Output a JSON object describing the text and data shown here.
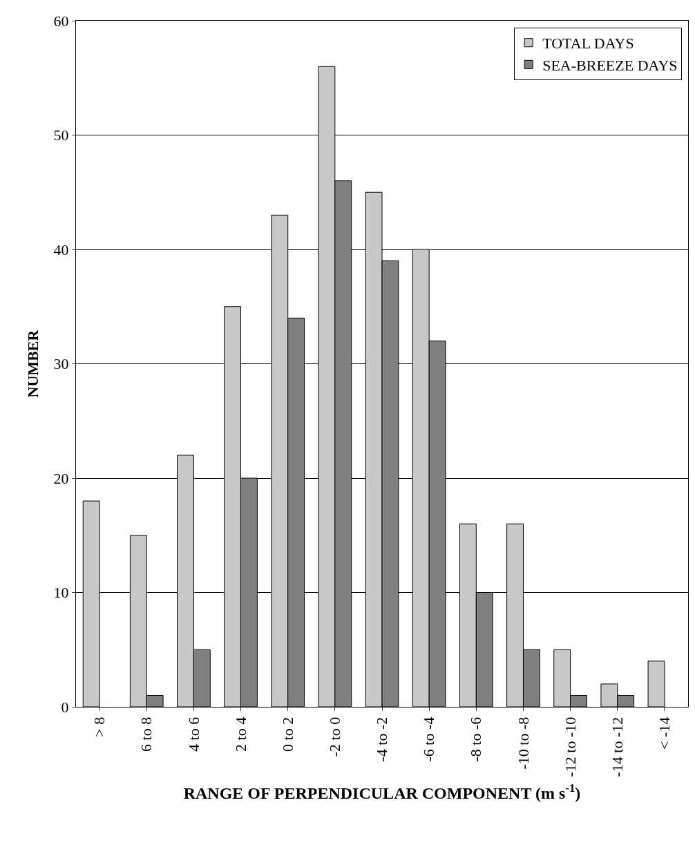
{
  "chart_data": {
    "type": "bar",
    "xlabel": "RANGE OF PERPENDICULAR COMPONENT (m s$^{-1}$)",
    "ylabel": "NUMBER",
    "categories": [
      "> 8",
      "6 to 8",
      "4 to 6",
      "2 to 4",
      "0 to 2",
      "-2 to 0",
      "-4 to -2",
      "-6 to -4",
      "-8 to -6",
      "-10 to -8",
      "-12 to -10",
      "-14 to -12",
      "< -14"
    ],
    "series": [
      {
        "name": "TOTAL DAYS",
        "color": "#c8c8c8",
        "values": [
          18,
          15,
          22,
          35,
          43,
          56,
          45,
          40,
          16,
          16,
          5,
          2,
          4
        ]
      },
      {
        "name": "SEA-BREEZE DAYS",
        "color": "#808080",
        "values": [
          null,
          1,
          5,
          20,
          34,
          46,
          39,
          32,
          10,
          5,
          1,
          1,
          null
        ]
      }
    ],
    "ylim": [
      0,
      60
    ],
    "yticks": [
      0,
      10,
      20,
      30,
      40,
      50,
      60
    ],
    "grid": "y",
    "legend": "top right"
  }
}
